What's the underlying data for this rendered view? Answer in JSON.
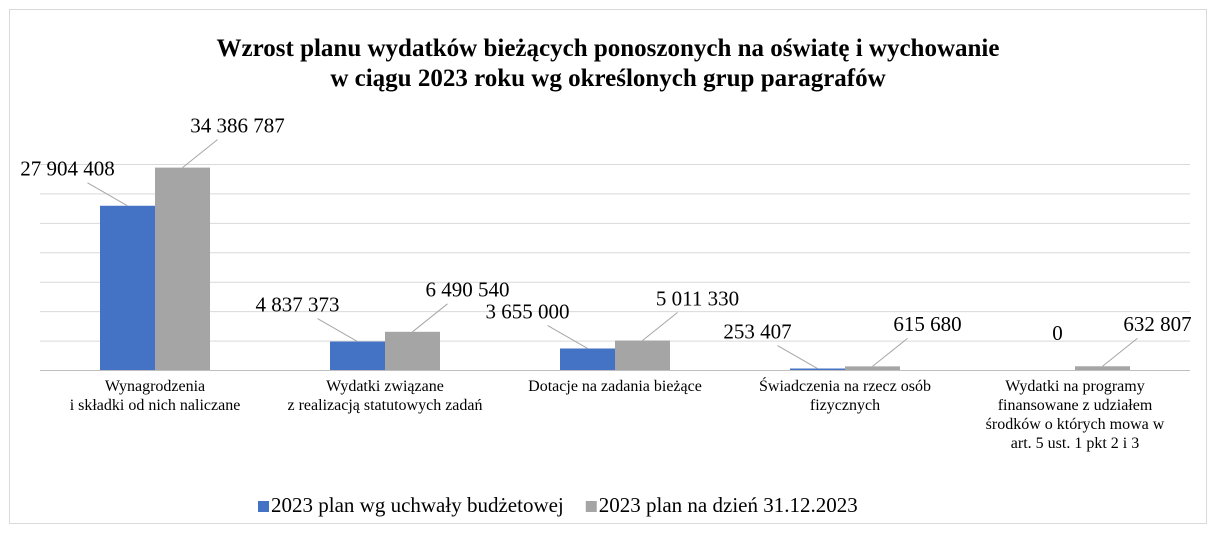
{
  "chart_data": {
    "type": "bar",
    "title": "Wzrost planu wydatków bieżących ponoszonych na oświatę i wychowanie\nw ciągu 2023 roku wg określonych grup paragrafów",
    "categories": [
      "Wynagrodzenia\ni składki od nich naliczane",
      "Wydatki związane\nz realizacją statutowych zadań",
      "Dotacje na zadania bieżące",
      "Świadczenia na rzecz osób\nfizycznych",
      "Wydatki na programy\nfinansowane z udziałem\nśrodków o których mowa w\nart. 5 ust. 1  pkt 2 i 3"
    ],
    "series": [
      {
        "name": "2023 plan wg uchwały budżetowej",
        "color": "#4472c4",
        "values": [
          27904408,
          4837373,
          3655000,
          253407,
          0
        ],
        "value_labels": [
          "27 904 408",
          "4 837 373",
          "3 655 000",
          "253 407",
          "0"
        ]
      },
      {
        "name": "2023 plan na dzień 31.12.2023",
        "color": "#a5a5a5",
        "values": [
          34386787,
          6490540,
          5011330,
          615680,
          632807
        ],
        "value_labels": [
          "34 386 787",
          "6 490 540",
          "5 011 330",
          "615 680",
          "632 807"
        ]
      }
    ],
    "ylim": [
      0,
      35000000
    ],
    "yticks": [
      0,
      5000000,
      10000000,
      15000000,
      20000000,
      25000000,
      30000000,
      35000000
    ],
    "grid": true,
    "legend": "bottom"
  }
}
